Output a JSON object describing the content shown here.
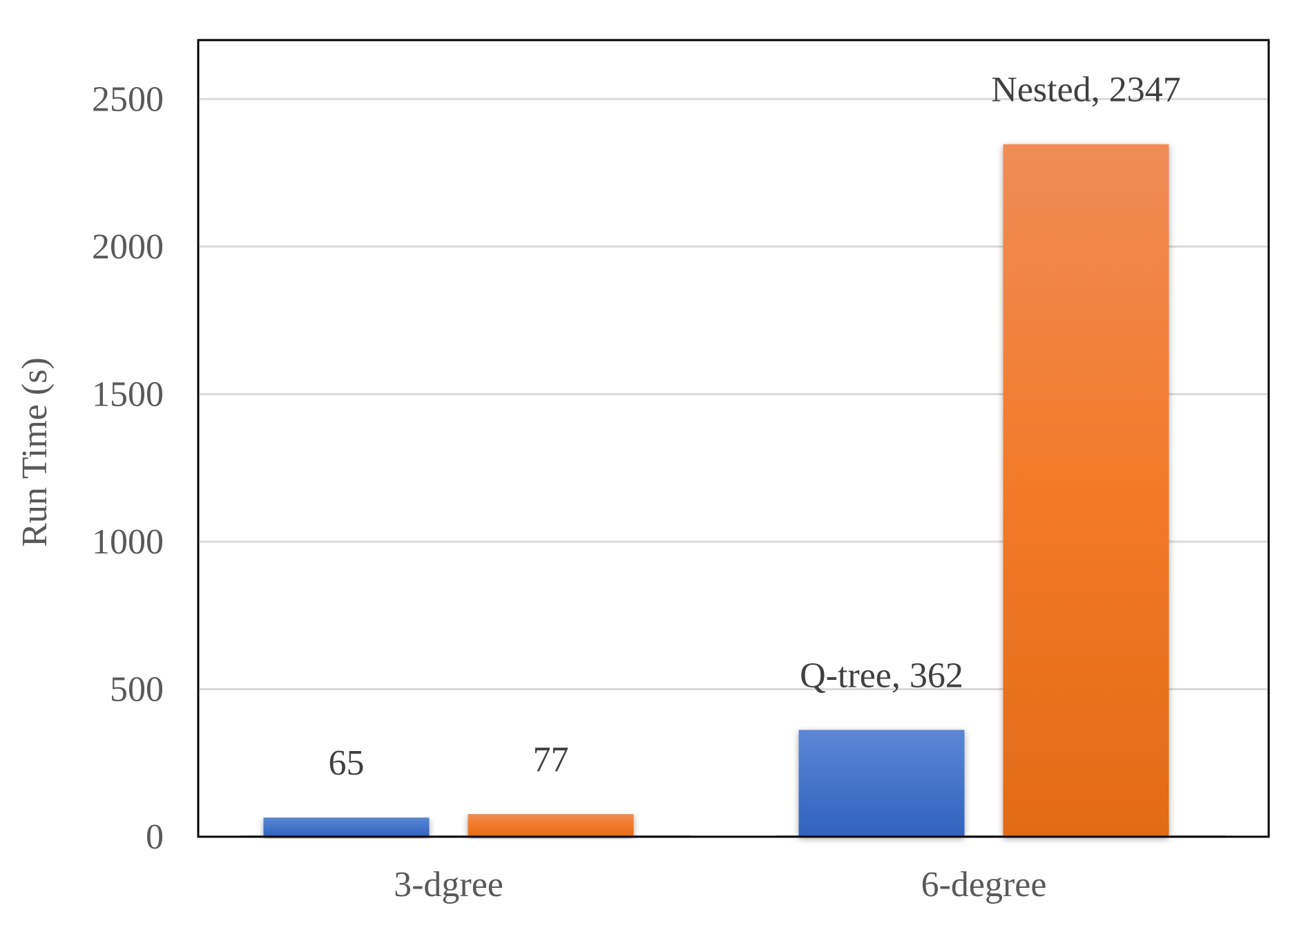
{
  "chart_data": {
    "type": "bar",
    "title": "",
    "xlabel": "",
    "ylabel": "Run Time (s)",
    "categories": [
      "3-dgree",
      "6-degree"
    ],
    "ylim": [
      0,
      2700
    ],
    "yticks": [
      0,
      500,
      1000,
      1500,
      2000,
      2500
    ],
    "grid": true,
    "legend": "none",
    "series": [
      {
        "values": [
          65,
          362
        ],
        "color": "#4472C4",
        "data_labels": [
          "65",
          "Q-tree, 362"
        ]
      },
      {
        "values": [
          77,
          2347
        ],
        "color": "#ED7D31",
        "data_labels": [
          "77",
          "Nested, 2347"
        ]
      }
    ]
  }
}
